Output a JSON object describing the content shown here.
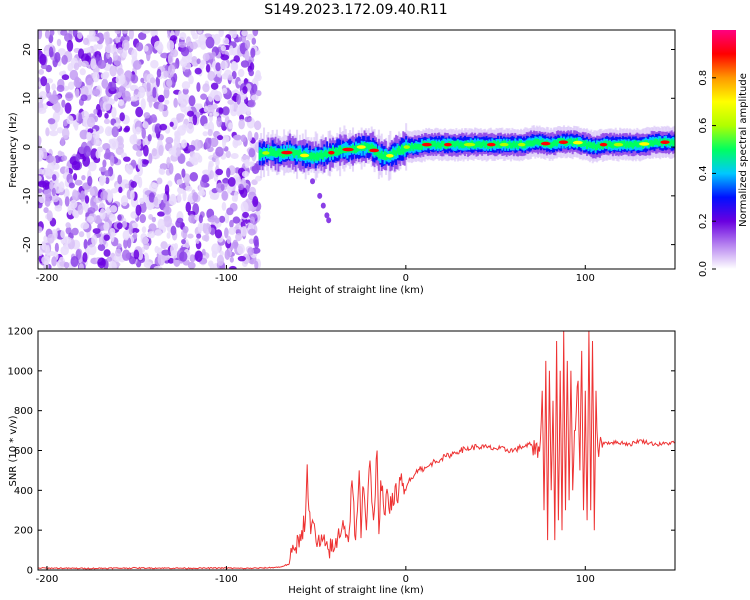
{
  "figure": {
    "title": "S149.2023.172.09.40.R11"
  },
  "chart_data": [
    {
      "type": "heatmap",
      "name": "spectrogram",
      "xlabel": "Height of straight line (km)",
      "ylabel": "Frequency (Hz)",
      "xlim": [
        -205,
        150
      ],
      "ylim": [
        -25,
        24
      ],
      "xticks": [
        -200,
        -100,
        0,
        100
      ],
      "xtick_labels": [
        "-200",
        "-100",
        "0",
        "100"
      ],
      "yticks": [
        -20,
        -10,
        0,
        10,
        20
      ],
      "ytick_labels": [
        "-20",
        "-10",
        "0",
        "10",
        "20"
      ],
      "grid": false,
      "noise_region_x": [
        -205,
        -82
      ],
      "signal_trace": {
        "x": [
          -82,
          -75,
          -70,
          -65,
          -60,
          -55,
          -50,
          -45,
          -40,
          -35,
          -30,
          -25,
          -20,
          -15,
          -10,
          -5,
          0,
          5,
          10,
          20,
          30,
          40,
          50,
          60,
          65,
          70,
          75,
          80,
          85,
          90,
          95,
          100,
          105,
          110,
          120,
          130,
          140,
          150
        ],
        "freq_hz": [
          -1.5,
          -1,
          -1.5,
          -1,
          -1.5,
          -1.8,
          -2,
          -1.5,
          -1,
          -0.5,
          -0.5,
          0,
          0,
          -1.5,
          -2,
          -1,
          0,
          0,
          0.5,
          0.5,
          0.5,
          0.5,
          0.5,
          0.5,
          0.5,
          1,
          1,
          0.5,
          1,
          1,
          1,
          0.5,
          0,
          0.5,
          0.5,
          0.5,
          1,
          1
        ]
      },
      "colorbar": {
        "label": "Normalized spectral amplitude",
        "range": [
          0,
          1
        ],
        "ticks": [
          0.0,
          0.2,
          0.4,
          0.6,
          0.8
        ],
        "tick_labels": [
          "0.0",
          "0.2",
          "0.4",
          "0.6",
          "0.8"
        ],
        "colormap": "rainbow",
        "colors": [
          "#ffffff",
          "#b784f0",
          "#6a00e0",
          "#0010ff",
          "#00c8ff",
          "#00ff60",
          "#b0ff00",
          "#ffff00",
          "#ff9900",
          "#ff0000",
          "#ff0080"
        ]
      }
    },
    {
      "type": "line",
      "name": "snr",
      "xlabel": "Height of straight line (km)",
      "ylabel": "SNR (10 * v/v)",
      "xlim": [
        -205,
        150
      ],
      "ylim": [
        0,
        1200
      ],
      "xticks": [
        -200,
        -100,
        0,
        100
      ],
      "xtick_labels": [
        "-200",
        "-100",
        "0",
        "100"
      ],
      "yticks": [
        0,
        200,
        400,
        600,
        800,
        1000,
        1200
      ],
      "ytick_labels": [
        "0",
        "200",
        "400",
        "600",
        "800",
        "1000",
        "1200"
      ],
      "grid": false,
      "color": "#ee3333",
      "series": [
        {
          "x": [
            -205,
            -180,
            -150,
            -120,
            -100,
            -90,
            -80,
            -75,
            -70,
            -65,
            -62,
            -58,
            -56,
            -55,
            -54,
            -53,
            -52,
            -50,
            -45,
            -40,
            -35,
            -32,
            -30,
            -28,
            -26,
            -25,
            -24,
            -22,
            -20,
            -18,
            -16,
            -15,
            -14,
            -12,
            -10,
            -8,
            -6,
            -5,
            -3,
            -1,
            0,
            2,
            5,
            8,
            10,
            15,
            20,
            25,
            30,
            40,
            50,
            60,
            65,
            70,
            72,
            74,
            75,
            76,
            77,
            78,
            79,
            80,
            81,
            82,
            83,
            84,
            85,
            86,
            87,
            88,
            89,
            90,
            91,
            92,
            93,
            94,
            95,
            96,
            97,
            98,
            99,
            100,
            101,
            102,
            103,
            104,
            105,
            106,
            107,
            108,
            110,
            115,
            120,
            125,
            130,
            140,
            150
          ],
          "values": [
            10,
            8,
            10,
            9,
            10,
            8,
            10,
            12,
            15,
            30,
            100,
            200,
            250,
            530,
            300,
            180,
            250,
            140,
            120,
            100,
            250,
            140,
            450,
            150,
            500,
            160,
            420,
            200,
            550,
            250,
            600,
            180,
            450,
            280,
            380,
            300,
            420,
            350,
            450,
            380,
            400,
            460,
            480,
            520,
            500,
            540,
            560,
            580,
            600,
            620,
            610,
            600,
            620,
            630,
            580,
            620,
            650,
            900,
            300,
            1050,
            150,
            1000,
            400,
            850,
            150,
            1150,
            250,
            1000,
            200,
            1200,
            300,
            1050,
            350,
            1000,
            400,
            700,
            800,
            950,
            500,
            1100,
            300,
            900,
            250,
            1200,
            300,
            1150,
            200,
            900,
            620,
            630,
            640,
            640,
            640,
            630,
            650,
            630,
            640
          ]
        }
      ]
    }
  ]
}
